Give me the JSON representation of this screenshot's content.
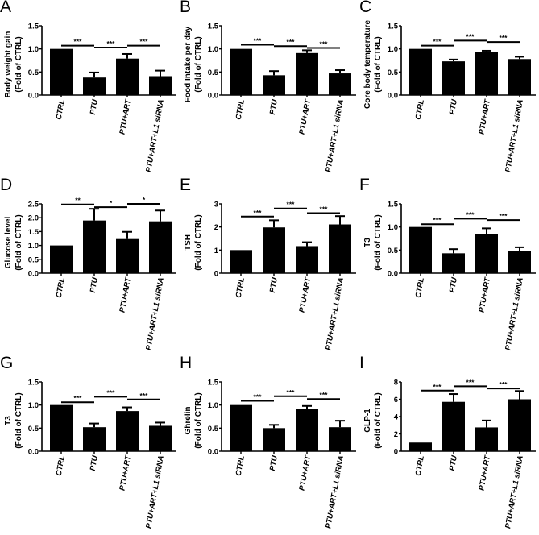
{
  "colors": {
    "bar": "#000000",
    "axis": "#000000"
  },
  "chart_data": [
    {
      "panel": "A",
      "type": "bar",
      "categories": [
        "CTRL",
        "PTU",
        "PTU+ART",
        "PTU+ART+L1 siRNA"
      ],
      "values": [
        1.0,
        0.38,
        0.79,
        0.41
      ],
      "errors": [
        0,
        0.11,
        0.1,
        0.12
      ],
      "ylabel": [
        "Body weight gain",
        "(Fold of CTRL)"
      ],
      "ylim": [
        0,
        1.5
      ],
      "yticks": [
        "0.0",
        "0.5",
        "1.0",
        "1.5"
      ],
      "ytick_values": [
        0,
        0.5,
        1.0,
        1.5
      ],
      "significance": [
        {
          "from": 0,
          "to": 1,
          "y": 1.07,
          "label": "***"
        },
        {
          "from": 1,
          "to": 2,
          "y": 1.03,
          "label": "***"
        },
        {
          "from": 2,
          "to": 3,
          "y": 1.07,
          "label": "***"
        }
      ]
    },
    {
      "panel": "B",
      "type": "bar",
      "categories": [
        "CTRL",
        "PTU",
        "PTU+ART",
        "PTU+ART+L1 siRNA"
      ],
      "values": [
        1.0,
        0.43,
        0.91,
        0.47
      ],
      "errors": [
        0,
        0.09,
        0.06,
        0.07
      ],
      "ylabel": [
        "Food Intake per day",
        "(Fold of CTRL)"
      ],
      "ylim": [
        0,
        1.5
      ],
      "yticks": [
        "0.0",
        "0.5",
        "1.0",
        "1.5"
      ],
      "ytick_values": [
        0,
        0.5,
        1.0,
        1.5
      ],
      "significance": [
        {
          "from": 0,
          "to": 1,
          "y": 1.09,
          "label": "***"
        },
        {
          "from": 1,
          "to": 2,
          "y": 1.06,
          "label": "***"
        },
        {
          "from": 2,
          "to": 3,
          "y": 1.02,
          "label": "***"
        }
      ]
    },
    {
      "panel": "C",
      "type": "bar",
      "categories": [
        "CTRL",
        "PTU",
        "PTU+ART",
        "PTU+ART+L1 siRNA"
      ],
      "values": [
        1.0,
        0.73,
        0.93,
        0.78
      ],
      "errors": [
        0,
        0.04,
        0.03,
        0.05
      ],
      "ylabel": [
        "Core body temperature",
        "(Fold of CTRL)"
      ],
      "ylim": [
        0,
        1.5
      ],
      "yticks": [
        "0.0",
        "0.5",
        "1.0",
        "1.5"
      ],
      "ytick_values": [
        0,
        0.5,
        1.0,
        1.5
      ],
      "significance": [
        {
          "from": 0,
          "to": 1,
          "y": 1.07,
          "label": "***"
        },
        {
          "from": 1,
          "to": 2,
          "y": 1.18,
          "label": "***"
        },
        {
          "from": 2,
          "to": 3,
          "y": 1.15,
          "label": "***"
        }
      ]
    },
    {
      "panel": "D",
      "type": "bar",
      "categories": [
        "CTRL",
        "PTU",
        "PTU+ART",
        "PTU+ART+L1 siRNA"
      ],
      "values": [
        1.0,
        1.9,
        1.23,
        1.87
      ],
      "errors": [
        0,
        0.42,
        0.26,
        0.39
      ],
      "ylabel": [
        "Glucose level",
        "(Fold of CTRL)"
      ],
      "ylim": [
        0,
        2.5
      ],
      "yticks": [
        "0.0",
        "0.5",
        "1.0",
        "1.5",
        "2.0",
        "2.5"
      ],
      "ytick_values": [
        0,
        0.5,
        1.0,
        1.5,
        2.0,
        2.5
      ],
      "significance": [
        {
          "from": 0,
          "to": 1,
          "y": 2.48,
          "label": "**"
        },
        {
          "from": 1,
          "to": 2,
          "y": 2.38,
          "label": "*"
        },
        {
          "from": 2,
          "to": 3,
          "y": 2.5,
          "label": "*"
        }
      ]
    },
    {
      "panel": "E",
      "type": "bar",
      "categories": [
        "CTRL",
        "PTU",
        "PTU+ART",
        "PTU+ART+L1 siRNA"
      ],
      "values": [
        1.0,
        1.98,
        1.17,
        2.11
      ],
      "errors": [
        0,
        0.31,
        0.17,
        0.36
      ],
      "ylabel": [
        "TSH",
        "(Fold of CTRL)"
      ],
      "ylim": [
        0,
        3
      ],
      "yticks": [
        "0",
        "1",
        "2",
        "3"
      ],
      "ytick_values": [
        0,
        1,
        2,
        3
      ],
      "significance": [
        {
          "from": 0,
          "to": 1,
          "y": 2.45,
          "label": "***"
        },
        {
          "from": 1,
          "to": 2,
          "y": 2.8,
          "label": "***"
        },
        {
          "from": 2,
          "to": 3,
          "y": 2.6,
          "label": "***"
        }
      ]
    },
    {
      "panel": "F",
      "type": "bar",
      "categories": [
        "CTRL",
        "PTU",
        "PTU+ART",
        "PTU+ART+L1 siRNA"
      ],
      "values": [
        1.0,
        0.43,
        0.85,
        0.48
      ],
      "errors": [
        0,
        0.09,
        0.12,
        0.08
      ],
      "ylabel": [
        "T3",
        "(Fold of CTRL)"
      ],
      "ylim": [
        0,
        1.5
      ],
      "yticks": [
        "0.0",
        "0.5",
        "1.0",
        "1.5"
      ],
      "ytick_values": [
        0,
        0.5,
        1.0,
        1.5
      ],
      "significance": [
        {
          "from": 0,
          "to": 1,
          "y": 1.06,
          "label": "***"
        },
        {
          "from": 1,
          "to": 2,
          "y": 1.18,
          "label": "***"
        },
        {
          "from": 2,
          "to": 3,
          "y": 1.15,
          "label": "***"
        }
      ]
    },
    {
      "panel": "G",
      "type": "bar",
      "categories": [
        "CTRL",
        "PTU",
        "PTU+ART",
        "PTU+ART+L1 siRNA"
      ],
      "values": [
        1.0,
        0.52,
        0.87,
        0.55
      ],
      "errors": [
        0,
        0.08,
        0.08,
        0.07
      ],
      "ylabel": [
        "T3",
        "(Fold of CTRL)"
      ],
      "ylim": [
        0,
        1.5
      ],
      "yticks": [
        "0.0",
        "0.5",
        "1.0",
        "1.5"
      ],
      "ytick_values": [
        0,
        0.5,
        1.0,
        1.5
      ],
      "significance": [
        {
          "from": 0,
          "to": 1,
          "y": 1.06,
          "label": "***"
        },
        {
          "from": 1,
          "to": 2,
          "y": 1.18,
          "label": "***"
        },
        {
          "from": 2,
          "to": 3,
          "y": 1.12,
          "label": "***"
        }
      ]
    },
    {
      "panel": "H",
      "type": "bar",
      "categories": [
        "CTRL",
        "PTU",
        "PTU+ART",
        "PTU+ART+L1 siRNA"
      ],
      "values": [
        1.0,
        0.5,
        0.91,
        0.52
      ],
      "errors": [
        0,
        0.07,
        0.07,
        0.14
      ],
      "ylabel": [
        "Ghrelin",
        "(Fold of CTRL)"
      ],
      "ylim": [
        0,
        1.5
      ],
      "yticks": [
        "0.0",
        "0.5",
        "1.0",
        "1.5"
      ],
      "ytick_values": [
        0,
        0.5,
        1.0,
        1.5
      ],
      "significance": [
        {
          "from": 0,
          "to": 1,
          "y": 1.09,
          "label": "***"
        },
        {
          "from": 1,
          "to": 2,
          "y": 1.19,
          "label": "***"
        },
        {
          "from": 2,
          "to": 3,
          "y": 1.13,
          "label": "***"
        }
      ]
    },
    {
      "panel": "I",
      "type": "bar",
      "categories": [
        "CTRL",
        "PTU",
        "PTU+ART",
        "PTU+ART+L1 siRNA"
      ],
      "values": [
        1.0,
        5.7,
        2.75,
        6.0
      ],
      "errors": [
        0,
        0.9,
        0.8,
        0.95
      ],
      "ylabel": [
        "GLP-1",
        "(Fold of CTRL)"
      ],
      "ylim": [
        0,
        8
      ],
      "yticks": [
        "0",
        "2",
        "4",
        "6",
        "8"
      ],
      "ytick_values": [
        0,
        2,
        4,
        6,
        8
      ],
      "significance": [
        {
          "from": 0,
          "to": 1,
          "y": 7.0,
          "label": "***"
        },
        {
          "from": 1,
          "to": 2,
          "y": 7.5,
          "label": "***"
        },
        {
          "from": 2,
          "to": 3,
          "y": 7.25,
          "label": "***"
        }
      ]
    }
  ]
}
